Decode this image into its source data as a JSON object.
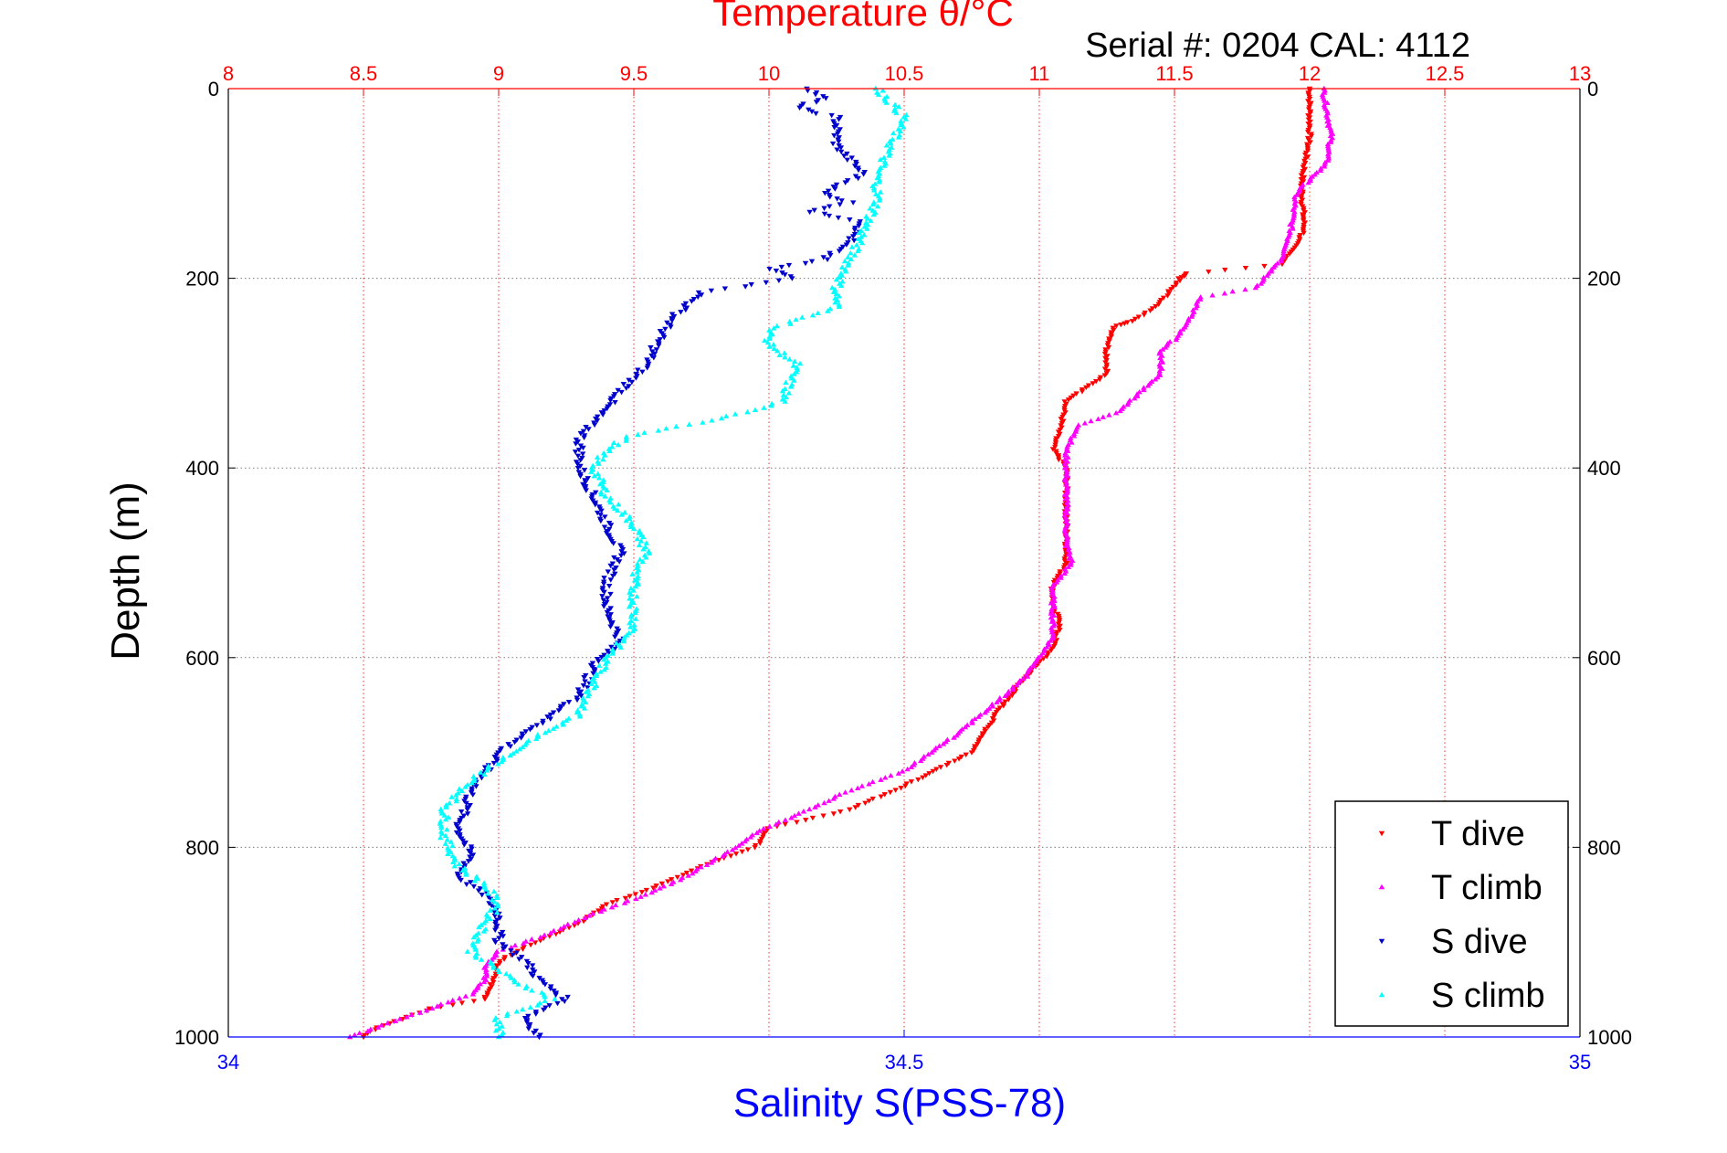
{
  "chart_data": {
    "type": "scatter",
    "title_top": "Temperature θ/°C",
    "annotation": "Serial #: 0204  CAL: 4112",
    "xlabel_bottom": "Salinity S(PSS-78)",
    "ylabel": "Depth (m)",
    "colors": {
      "top_axis": "#ff0000",
      "bottom_axis": "#0000ff",
      "t_dive": "#ff0000",
      "t_climb": "#ff00ff",
      "s_dive": "#0000cc",
      "s_climb": "#00ffff",
      "depth_grid": "#7a7a7a",
      "temp_grid": "#ff3333"
    },
    "axes": {
      "temperature": {
        "range": [
          8,
          13
        ],
        "ticks": [
          "8",
          "8.5",
          "9",
          "9.5",
          "10",
          "10.5",
          "11",
          "11.5",
          "12",
          "12.5",
          "13"
        ]
      },
      "salinity": {
        "range": [
          34,
          35
        ],
        "ticks": [
          "34",
          "34.5",
          "35"
        ]
      },
      "depth": {
        "range": [
          0,
          1000
        ],
        "inverted": true,
        "ticks": [
          "0",
          "200",
          "400",
          "600",
          "800",
          "1000"
        ]
      }
    },
    "grid": true,
    "legend_position": "bottom-right",
    "legend": [
      "T dive",
      "T climb",
      "S dive",
      "S climb"
    ],
    "series": [
      {
        "name": "T dive",
        "axis": "temperature",
        "points": [
          [
            12.0,
            0
          ],
          [
            12.0,
            50
          ],
          [
            11.97,
            100
          ],
          [
            11.98,
            150
          ],
          [
            11.9,
            185
          ],
          [
            11.55,
            195
          ],
          [
            11.52,
            200
          ],
          [
            11.45,
            225
          ],
          [
            11.35,
            245
          ],
          [
            11.28,
            250
          ],
          [
            11.25,
            275
          ],
          [
            11.25,
            300
          ],
          [
            11.1,
            330
          ],
          [
            11.08,
            355
          ],
          [
            11.05,
            380
          ],
          [
            11.1,
            400
          ],
          [
            11.1,
            450
          ],
          [
            11.1,
            480
          ],
          [
            11.1,
            500
          ],
          [
            11.05,
            525
          ],
          [
            11.05,
            550
          ],
          [
            11.08,
            560
          ],
          [
            11.05,
            590
          ],
          [
            10.95,
            620
          ],
          [
            10.85,
            655
          ],
          [
            10.75,
            700
          ],
          [
            10.5,
            735
          ],
          [
            10.3,
            760
          ],
          [
            10.0,
            780
          ],
          [
            9.95,
            800
          ],
          [
            9.75,
            820
          ],
          [
            9.55,
            845
          ],
          [
            9.4,
            860
          ],
          [
            9.3,
            880
          ],
          [
            9.1,
            905
          ],
          [
            9.0,
            920
          ],
          [
            8.98,
            940
          ],
          [
            8.95,
            960
          ],
          [
            8.75,
            970
          ],
          [
            8.55,
            990
          ],
          [
            8.5,
            1000
          ]
        ]
      },
      {
        "name": "T climb",
        "axis": "temperature",
        "points": [
          [
            12.05,
            0
          ],
          [
            12.08,
            50
          ],
          [
            12.06,
            80
          ],
          [
            11.95,
            110
          ],
          [
            11.93,
            150
          ],
          [
            11.9,
            180
          ],
          [
            11.8,
            210
          ],
          [
            11.6,
            220
          ],
          [
            11.55,
            245
          ],
          [
            11.5,
            265
          ],
          [
            11.45,
            275
          ],
          [
            11.45,
            300
          ],
          [
            11.3,
            340
          ],
          [
            11.15,
            355
          ],
          [
            11.1,
            380
          ],
          [
            11.1,
            400
          ],
          [
            11.1,
            450
          ],
          [
            11.1,
            480
          ],
          [
            11.12,
            500
          ],
          [
            11.05,
            525
          ],
          [
            11.05,
            560
          ],
          [
            11.05,
            580
          ],
          [
            10.95,
            620
          ],
          [
            10.85,
            645
          ],
          [
            10.7,
            680
          ],
          [
            10.5,
            720
          ],
          [
            10.3,
            740
          ],
          [
            10.15,
            760
          ],
          [
            9.95,
            785
          ],
          [
            9.85,
            805
          ],
          [
            9.7,
            830
          ],
          [
            9.55,
            850
          ],
          [
            9.35,
            870
          ],
          [
            9.15,
            895
          ],
          [
            9.0,
            910
          ],
          [
            8.95,
            925
          ],
          [
            8.95,
            940
          ],
          [
            8.9,
            955
          ],
          [
            8.75,
            970
          ],
          [
            8.55,
            990
          ],
          [
            8.45,
            1000
          ]
        ]
      },
      {
        "name": "S dive",
        "axis": "salinity",
        "points": [
          [
            34.43,
            0
          ],
          [
            34.44,
            10
          ],
          [
            34.42,
            20
          ],
          [
            34.45,
            30
          ],
          [
            34.45,
            60
          ],
          [
            34.47,
            90
          ],
          [
            34.44,
            110
          ],
          [
            34.46,
            120
          ],
          [
            34.43,
            130
          ],
          [
            34.47,
            140
          ],
          [
            34.46,
            160
          ],
          [
            34.44,
            180
          ],
          [
            34.4,
            190
          ],
          [
            34.42,
            200
          ],
          [
            34.35,
            215
          ],
          [
            34.33,
            240
          ],
          [
            34.32,
            260
          ],
          [
            34.31,
            290
          ],
          [
            34.29,
            320
          ],
          [
            34.27,
            350
          ],
          [
            34.26,
            370
          ],
          [
            34.26,
            400
          ],
          [
            34.27,
            430
          ],
          [
            34.28,
            460
          ],
          [
            34.29,
            490
          ],
          [
            34.28,
            520
          ],
          [
            34.28,
            550
          ],
          [
            34.29,
            580
          ],
          [
            34.27,
            610
          ],
          [
            34.26,
            640
          ],
          [
            34.24,
            660
          ],
          [
            34.2,
            700
          ],
          [
            34.18,
            740
          ],
          [
            34.17,
            780
          ],
          [
            34.18,
            810
          ],
          [
            34.17,
            830
          ],
          [
            34.19,
            850
          ],
          [
            34.2,
            870
          ],
          [
            34.2,
            900
          ],
          [
            34.22,
            920
          ],
          [
            34.23,
            940
          ],
          [
            34.25,
            960
          ],
          [
            34.22,
            980
          ],
          [
            34.23,
            1000
          ]
        ]
      },
      {
        "name": "S climb",
        "axis": "salinity",
        "points": [
          [
            34.48,
            0
          ],
          [
            34.49,
            15
          ],
          [
            34.5,
            30
          ],
          [
            34.49,
            60
          ],
          [
            34.48,
            90
          ],
          [
            34.48,
            120
          ],
          [
            34.47,
            150
          ],
          [
            34.46,
            180
          ],
          [
            34.45,
            210
          ],
          [
            34.45,
            230
          ],
          [
            34.4,
            255
          ],
          [
            34.4,
            270
          ],
          [
            34.42,
            290
          ],
          [
            34.41,
            330
          ],
          [
            34.36,
            350
          ],
          [
            34.3,
            365
          ],
          [
            34.28,
            380
          ],
          [
            34.27,
            400
          ],
          [
            34.28,
            430
          ],
          [
            34.3,
            460
          ],
          [
            34.31,
            490
          ],
          [
            34.3,
            510
          ],
          [
            34.3,
            540
          ],
          [
            34.3,
            570
          ],
          [
            34.28,
            600
          ],
          [
            34.27,
            630
          ],
          [
            34.26,
            660
          ],
          [
            34.22,
            690
          ],
          [
            34.18,
            730
          ],
          [
            34.16,
            760
          ],
          [
            34.16,
            790
          ],
          [
            34.17,
            820
          ],
          [
            34.19,
            840
          ],
          [
            34.2,
            860
          ],
          [
            34.19,
            880
          ],
          [
            34.18,
            910
          ],
          [
            34.21,
            940
          ],
          [
            34.24,
            960
          ],
          [
            34.2,
            980
          ],
          [
            34.2,
            1000
          ]
        ]
      }
    ]
  }
}
